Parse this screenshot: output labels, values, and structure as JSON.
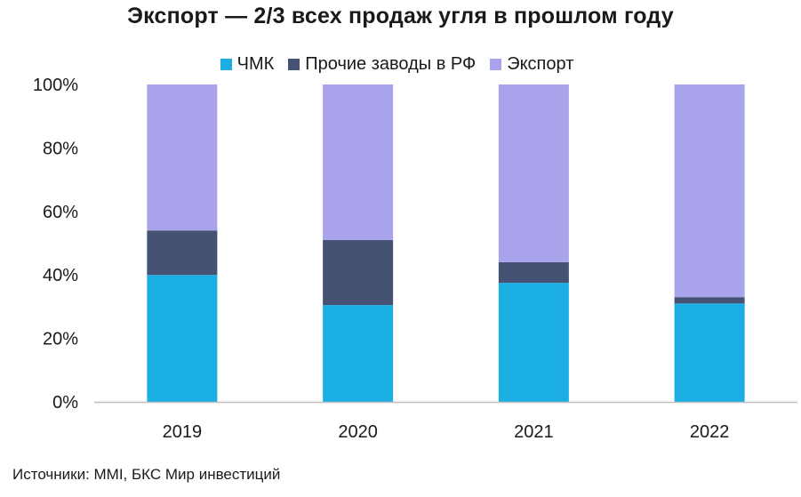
{
  "chart_data": {
    "type": "bar",
    "stacked": true,
    "title": "Экспорт — 2/3 всех продаж угля в прошлом году",
    "categories": [
      "2019",
      "2020",
      "2021",
      "2022"
    ],
    "series": [
      {
        "name": "ЧМК",
        "color": "#1baee2",
        "values": [
          40,
          30.5,
          37.5,
          31
        ]
      },
      {
        "name": "Прочие заводы в РФ",
        "color": "#465273",
        "values": [
          14,
          20.5,
          6.5,
          2
        ]
      },
      {
        "name": "Экспорт",
        "color": "#a9a3ec",
        "values": [
          46,
          49,
          56,
          67
        ]
      }
    ],
    "ylim": [
      0,
      100
    ],
    "yticks": [
      "0%",
      "20%",
      "40%",
      "60%",
      "80%",
      "100%"
    ],
    "grid": false,
    "legend_position": "top"
  },
  "source": "Источники: MMI, БКС Мир инвестиций"
}
